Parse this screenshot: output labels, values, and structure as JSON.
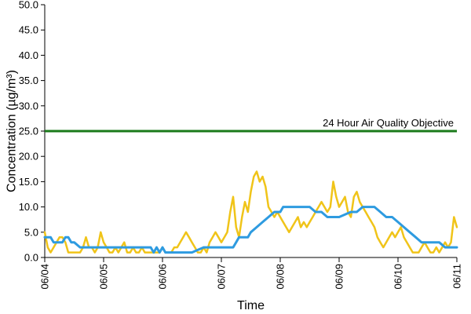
{
  "chart_data": {
    "type": "line",
    "xlabel": "Time",
    "ylabel": "Concentration (µg/m³)",
    "xlim": [
      0,
      7
    ],
    "ylim": [
      0,
      50
    ],
    "y_ticks": [
      "0.0",
      "5.0",
      "10.0",
      "15.0",
      "20.0",
      "25.0",
      "30.0",
      "35.0",
      "40.0",
      "45.0",
      "50.0"
    ],
    "x_ticks": [
      "06/04",
      "06/05",
      "06/06",
      "06/07",
      "06/08",
      "06/09",
      "06/10",
      "06/11"
    ],
    "grid": false,
    "legend": "none",
    "annotations": [
      {
        "text": "24 Hour Air Quality Objective",
        "y": 25
      }
    ],
    "objective": {
      "y": 25,
      "color": "#1a7a1a"
    },
    "series": [
      {
        "color": "#f0c419",
        "x": [
          0,
          0.05,
          0.1,
          0.15,
          0.2,
          0.25,
          0.3,
          0.35,
          0.4,
          0.45,
          0.5,
          0.55,
          0.6,
          0.65,
          0.7,
          0.75,
          0.8,
          0.85,
          0.9,
          0.95,
          1.0,
          1.05,
          1.1,
          1.15,
          1.2,
          1.25,
          1.3,
          1.35,
          1.4,
          1.45,
          1.5,
          1.55,
          1.6,
          1.65,
          1.7,
          1.75,
          1.8,
          1.85,
          1.9,
          1.95,
          2.0,
          2.05,
          2.1,
          2.15,
          2.2,
          2.25,
          2.3,
          2.35,
          2.4,
          2.45,
          2.5,
          2.55,
          2.6,
          2.65,
          2.7,
          2.75,
          2.8,
          2.85,
          2.9,
          2.95,
          3.0,
          3.05,
          3.1,
          3.15,
          3.2,
          3.25,
          3.3,
          3.35,
          3.4,
          3.45,
          3.5,
          3.55,
          3.6,
          3.65,
          3.7,
          3.75,
          3.8,
          3.85,
          3.9,
          3.95,
          4.0,
          4.05,
          4.1,
          4.15,
          4.2,
          4.25,
          4.3,
          4.35,
          4.4,
          4.45,
          4.5,
          4.55,
          4.6,
          4.65,
          4.7,
          4.75,
          4.8,
          4.85,
          4.9,
          4.95,
          5.0,
          5.05,
          5.1,
          5.15,
          5.2,
          5.25,
          5.3,
          5.35,
          5.4,
          5.45,
          5.5,
          5.55,
          5.6,
          5.65,
          5.7,
          5.75,
          5.8,
          5.85,
          5.9,
          5.95,
          6.0,
          6.05,
          6.1,
          6.15,
          6.2,
          6.25,
          6.3,
          6.35,
          6.4,
          6.45,
          6.5,
          6.55,
          6.6,
          6.65,
          6.7,
          6.75,
          6.8,
          6.85,
          6.9,
          6.95,
          7.0
        ],
        "values": [
          5,
          2,
          1,
          2,
          3,
          4,
          4,
          3,
          1,
          1,
          1,
          1,
          1,
          2,
          4,
          2,
          2,
          1,
          2,
          5,
          3,
          2,
          1,
          1,
          2,
          1,
          2,
          3,
          1,
          1,
          2,
          1,
          1,
          2,
          1,
          1,
          1,
          1,
          1,
          1,
          2,
          1,
          1,
          1,
          2,
          2,
          3,
          4,
          5,
          4,
          3,
          2,
          1,
          1,
          2,
          1,
          3,
          4,
          5,
          4,
          3,
          4,
          5,
          9,
          12,
          6,
          4,
          8,
          11,
          9,
          13,
          16,
          17,
          15,
          16,
          14,
          10,
          9,
          8,
          9,
          8,
          7,
          6,
          5,
          6,
          7,
          8,
          6,
          7,
          6,
          7,
          8,
          9,
          10,
          11,
          10,
          9,
          10,
          15,
          12,
          10,
          11,
          12,
          9,
          8,
          12,
          13,
          11,
          10,
          9,
          8,
          7,
          6,
          4,
          3,
          2,
          3,
          4,
          5,
          4,
          5,
          6,
          4,
          3,
          2,
          1,
          1,
          1,
          2,
          3,
          2,
          1,
          1,
          2,
          1,
          2,
          3,
          2,
          3,
          8,
          6
        ]
      },
      {
        "color": "#2e9be0",
        "x": [
          0,
          0.1,
          0.15,
          0.2,
          0.25,
          0.3,
          0.35,
          0.4,
          0.45,
          0.5,
          0.6,
          0.8,
          1.0,
          1.2,
          1.4,
          1.5,
          1.8,
          1.85,
          1.9,
          1.95,
          2.0,
          2.05,
          2.1,
          2.2,
          2.5,
          2.7,
          2.9,
          3.0,
          3.2,
          3.25,
          3.3,
          3.45,
          3.5,
          3.6,
          3.7,
          3.8,
          3.9,
          4.0,
          4.05,
          4.1,
          4.2,
          4.5,
          4.6,
          4.7,
          4.8,
          4.9,
          5.0,
          5.2,
          5.3,
          5.4,
          5.5,
          5.6,
          5.7,
          5.8,
          5.9,
          6.0,
          6.1,
          6.2,
          6.3,
          6.4,
          6.5,
          6.6,
          6.7,
          6.8,
          6.9,
          7.0
        ],
        "values": [
          4,
          4,
          3,
          3,
          3,
          3,
          4,
          4,
          3,
          3,
          2,
          2,
          2,
          2,
          2,
          2,
          2,
          1,
          2,
          1,
          2,
          1,
          1,
          1,
          1,
          2,
          2,
          2,
          2,
          3,
          4,
          4,
          5,
          6,
          7,
          8,
          9,
          9,
          10,
          10,
          10,
          10,
          9,
          9,
          8,
          8,
          8,
          9,
          9,
          10,
          10,
          10,
          9,
          8,
          8,
          7,
          6,
          5,
          4,
          3,
          3,
          3,
          3,
          2,
          2,
          2
        ]
      }
    ]
  }
}
